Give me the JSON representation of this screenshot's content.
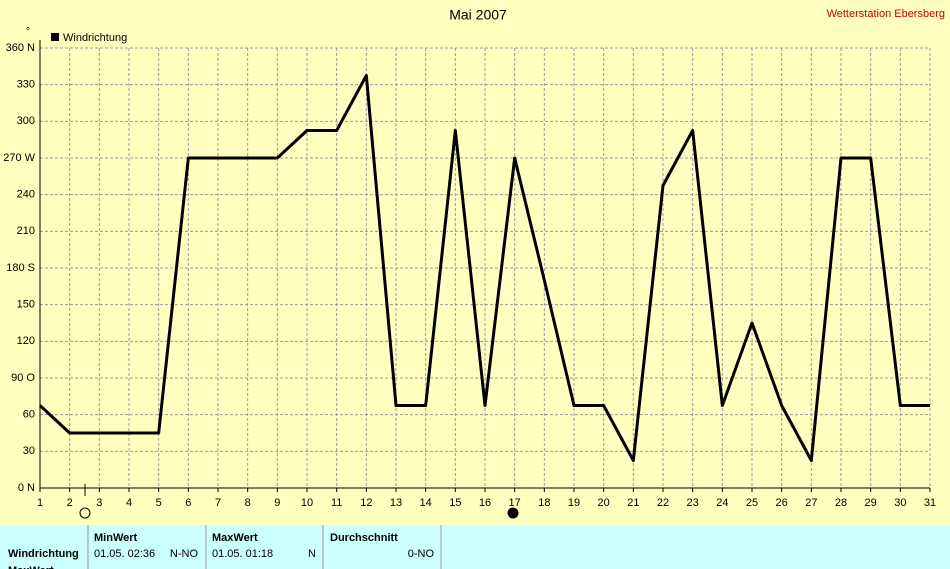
{
  "chart_data": {
    "type": "line",
    "title": "Mai 2007",
    "station": "Wetterstation Ebersberg",
    "unit_mark": "°",
    "grid": true,
    "legend": "top-left",
    "x": [
      1,
      2,
      3,
      4,
      5,
      6,
      7,
      8,
      9,
      10,
      11,
      12,
      13,
      14,
      15,
      16,
      17,
      18,
      19,
      20,
      21,
      22,
      23,
      24,
      25,
      26,
      27,
      28,
      29,
      30,
      31
    ],
    "xlim": [
      1,
      31
    ],
    "xticks": [
      1,
      2,
      3,
      4,
      5,
      6,
      7,
      8,
      9,
      10,
      11,
      12,
      13,
      14,
      15,
      16,
      17,
      18,
      19,
      20,
      21,
      22,
      23,
      24,
      25,
      26,
      27,
      28,
      29,
      30,
      31
    ],
    "ylim": [
      0,
      360
    ],
    "yticks": [
      {
        "value": 0,
        "label": "0  N"
      },
      30,
      60,
      {
        "value": 90,
        "label": "90  O"
      },
      120,
      150,
      {
        "value": 180,
        "label": "180 S"
      },
      210,
      240,
      {
        "value": 270,
        "label": "270 W"
      },
      300,
      330,
      {
        "value": 360,
        "label": "360 N"
      }
    ],
    "series": [
      {
        "name": "Windrichtung",
        "color": "#000000",
        "values": [
          67.5,
          45,
          45,
          45,
          45,
          270,
          270,
          270,
          270,
          292.5,
          292.5,
          337.5,
          67.5,
          67.5,
          292.5,
          67.5,
          270,
          170,
          67.5,
          67.5,
          22.5,
          247.5,
          292.5,
          67.5,
          135,
          67.5,
          22.5,
          270,
          270,
          67.5,
          67.5
        ]
      }
    ]
  },
  "footer": {
    "row_label": "Windrichtung",
    "next_row_label": "MaxWert",
    "columns": [
      {
        "header": "MinWert",
        "time": "01.05.  02:36",
        "value": "N-NO"
      },
      {
        "header": "MaxWert",
        "time": "01.05.  01:18",
        "value": "N"
      },
      {
        "header": "Durchschnitt",
        "time": "",
        "value": "0-NO"
      }
    ]
  }
}
